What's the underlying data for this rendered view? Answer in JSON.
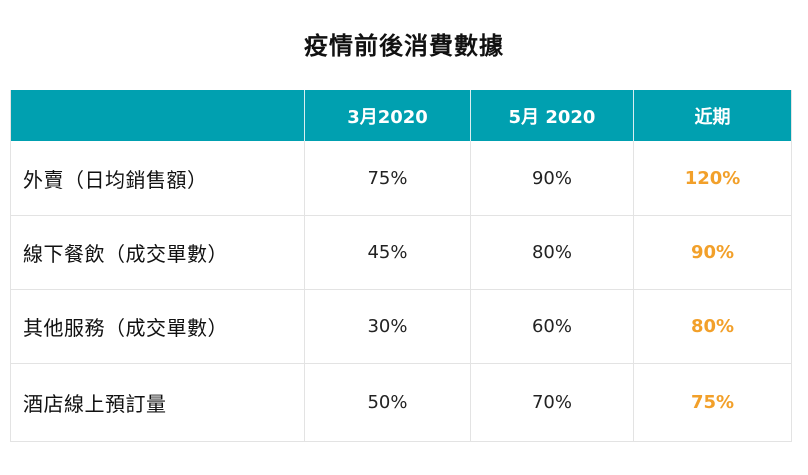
{
  "title": "疫情前後消費數據",
  "columns": [
    "",
    "3月2020",
    "5月 2020",
    "近期"
  ],
  "rows": [
    {
      "label": "外賣（日均銷售額）",
      "values": [
        "75%",
        "90%",
        "120%"
      ]
    },
    {
      "label": "線下餐飲（成交單數）",
      "values": [
        "45%",
        "80%",
        "90%"
      ]
    },
    {
      "label": "其他服務（成交單數）",
      "values": [
        "30%",
        "60%",
        "80%"
      ]
    },
    {
      "label": "酒店線上預訂量",
      "values": [
        "50%",
        "70%",
        "75%"
      ]
    }
  ],
  "colors": {
    "header_bg": "#00a0b0",
    "header_text": "#ffffff",
    "recent_highlight": "#f2a02a"
  }
}
